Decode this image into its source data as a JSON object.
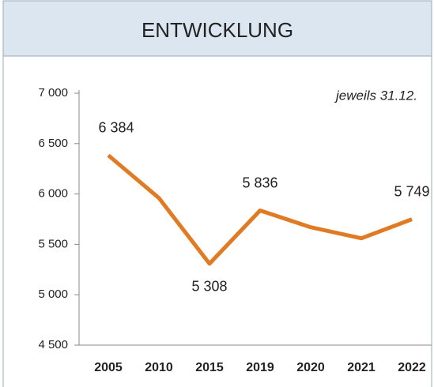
{
  "chart_data": {
    "type": "line",
    "title": "ENTWICKLUNG",
    "annotation": "jeweils 31.12.",
    "categories": [
      "2005",
      "2010",
      "2015",
      "2019",
      "2020",
      "2021",
      "2022"
    ],
    "series": [
      {
        "name": null,
        "color": "#e07b24",
        "values": [
          6384,
          5960,
          5308,
          5836,
          5670,
          5560,
          5749
        ],
        "value_labels": [
          "6 384",
          null,
          "5 308",
          "5 836",
          null,
          null,
          "5 749"
        ]
      }
    ],
    "ylim": [
      4500,
      7000
    ],
    "yticks": [
      {
        "value": 4500,
        "label": "4 500"
      },
      {
        "value": 5000,
        "label": "5 000"
      },
      {
        "value": 5500,
        "label": "5 500"
      },
      {
        "value": 6000,
        "label": "6 000"
      },
      {
        "value": 6500,
        "label": "6 500"
      },
      {
        "value": 7000,
        "label": "7 000"
      }
    ]
  }
}
